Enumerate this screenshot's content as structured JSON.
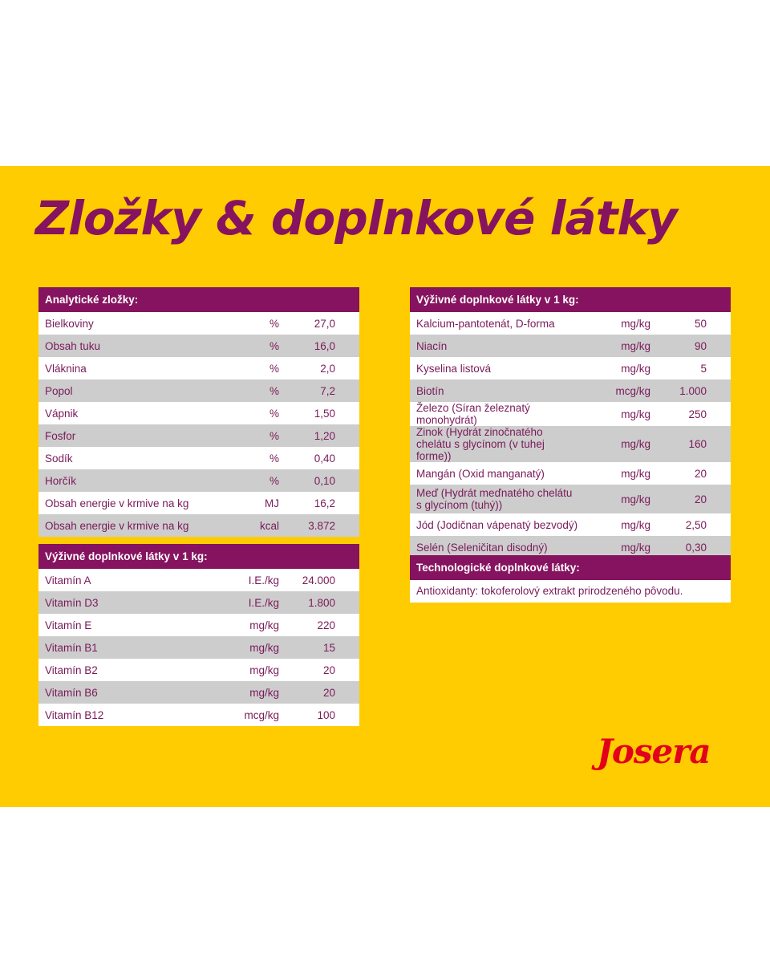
{
  "title": "Zložky & doplnkové látky",
  "brand": "Josera",
  "colors": {
    "background": "#FECC00",
    "header": "#86135F",
    "text": "#7a1a5a",
    "row_alt": "#CDCDCD",
    "logo": "#E2001A"
  },
  "analytic": {
    "header": "Analytické zložky:",
    "rows": [
      {
        "name": "Bielkoviny",
        "unit": "%",
        "value": "27,0"
      },
      {
        "name": "Obsah tuku",
        "unit": "%",
        "value": "16,0"
      },
      {
        "name": "Vláknina",
        "unit": "%",
        "value": "2,0"
      },
      {
        "name": "Popol",
        "unit": "%",
        "value": "7,2"
      },
      {
        "name": "Vápnik",
        "unit": "%",
        "value": "1,50"
      },
      {
        "name": "Fosfor",
        "unit": "%",
        "value": "1,20"
      },
      {
        "name": "Sodík",
        "unit": "%",
        "value": "0,40"
      },
      {
        "name": "Horčík",
        "unit": "%",
        "value": "0,10"
      },
      {
        "name": "Obsah energie v krmive na kg",
        "unit": "MJ",
        "value": "16,2"
      },
      {
        "name": "Obsah energie v krmive na kg",
        "unit": "kcal",
        "value": "3.872"
      }
    ]
  },
  "vitamins": {
    "header": "Výživné doplnkové látky v 1 kg:",
    "rows": [
      {
        "name": "Vitamín A",
        "unit": "I.E./kg",
        "value": "24.000"
      },
      {
        "name": "Vitamín D3",
        "unit": "I.E./kg",
        "value": "1.800"
      },
      {
        "name": "Vitamín E",
        "unit": "mg/kg",
        "value": "220"
      },
      {
        "name": "Vitamín B1",
        "unit": "mg/kg",
        "value": "15"
      },
      {
        "name": "Vitamín B2",
        "unit": "mg/kg",
        "value": "20"
      },
      {
        "name": "Vitamín B6",
        "unit": "mg/kg",
        "value": "20"
      },
      {
        "name": "Vitamín B12",
        "unit": "mcg/kg",
        "value": "100"
      }
    ]
  },
  "nutritional": {
    "header": "Výživné doplnkové látky v 1 kg:",
    "rows": [
      {
        "name": "Kalcium-pantotenát, D-forma",
        "unit": "mg/kg",
        "value": "50"
      },
      {
        "name": "Niacín",
        "unit": "mg/kg",
        "value": "90"
      },
      {
        "name": "Kyselina listová",
        "unit": "mg/kg",
        "value": "5"
      },
      {
        "name": "Biotín",
        "unit": "mcg/kg",
        "value": "1.000"
      },
      {
        "name": "Železo (Síran železnatý monohydrát)",
        "unit": "mg/kg",
        "value": "250"
      },
      {
        "name": "Zinok (Hydrát zinočnatého chelátu s glycínom (v tuhej forme))",
        "unit": "mg/kg",
        "value": "160"
      },
      {
        "name": "Mangán (Oxid manganatý)",
        "unit": "mg/kg",
        "value": "20"
      },
      {
        "name": "Meď (Hydrát meďnatého chelátu s glycínom (tuhý))",
        "unit": "mg/kg",
        "value": "20"
      },
      {
        "name": "Jód (Jodičnan vápenatý bezvodý)",
        "unit": "mg/kg",
        "value": "2,50"
      },
      {
        "name": "Selén (Seleničitan disodný)",
        "unit": "mg/kg",
        "value": "0,30"
      }
    ]
  },
  "technological": {
    "header": "Technologické doplnkové látky:",
    "text": "Antioxidanty: tokoferolový extrakt prirodzeného pôvodu."
  }
}
